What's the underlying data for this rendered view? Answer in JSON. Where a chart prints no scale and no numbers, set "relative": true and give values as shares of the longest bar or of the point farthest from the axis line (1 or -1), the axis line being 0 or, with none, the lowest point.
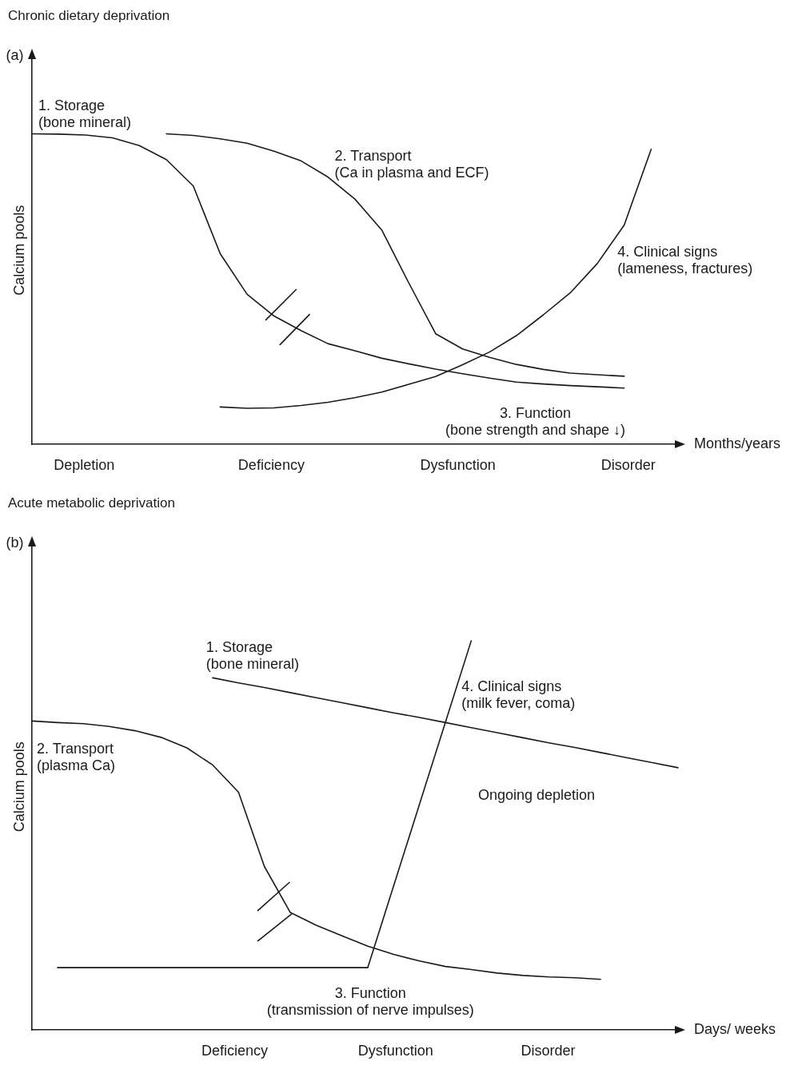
{
  "chart_data": [
    {
      "type": "line",
      "title": "Chronic dietary deprivation",
      "ylabel": "Calcium pools",
      "xlabel": "Months/years",
      "relative": true,
      "legend": false,
      "grid": false,
      "marker": "none",
      "line_style": "solid",
      "categories": [
        null,
        null,
        null,
        null,
        null,
        null,
        null,
        null,
        null,
        null,
        null,
        null,
        null,
        null,
        null,
        null,
        null,
        null,
        null,
        null,
        null,
        null,
        null,
        null,
        null
      ],
      "annotations": [
        "(a)",
        "3. Function (bone strength and shape ↓)",
        "Depletion",
        "Deficiency",
        "Dysfunction",
        "Disorder"
      ],
      "series": [
        {
          "name": "1. Storage (bone mineral)",
          "color": "#1a1a1a",
          "values": [
            1.0,
            0.999,
            0.996,
            0.987,
            0.962,
            0.917,
            0.832,
            0.614,
            0.483,
            0.413,
            0.366,
            0.324,
            0.301,
            0.277,
            0.259,
            0.242,
            0.227,
            0.213,
            0.2,
            0.194,
            0.189,
            0.185,
            0.181,
            null,
            null
          ]
        },
        {
          "name": "2. Transport (Ca in plasma and ECF)",
          "color": "#1a1a1a",
          "values": [
            null,
            null,
            null,
            null,
            null,
            1.0,
            0.995,
            0.984,
            0.97,
            0.944,
            0.913,
            0.861,
            0.79,
            0.69,
            0.52,
            0.356,
            0.307,
            0.28,
            0.257,
            0.241,
            0.229,
            0.224,
            0.219,
            null,
            null
          ]
        },
        {
          "name": "4. Clinical signs (lameness, fractures)",
          "color": "#1a1a1a",
          "values": [
            null,
            null,
            null,
            null,
            null,
            null,
            null,
            0.12,
            0.116,
            0.117,
            0.125,
            0.135,
            0.15,
            0.168,
            0.193,
            0.218,
            0.256,
            0.297,
            0.35,
            0.417,
            0.488,
            0.582,
            0.706,
            0.95,
            null
          ]
        }
      ]
    },
    {
      "type": "line",
      "title": "Acute metabolic deprivation",
      "ylabel": "Calcium pools",
      "xlabel": "Days/ weeks",
      "relative": true,
      "legend": false,
      "grid": false,
      "marker": "none",
      "line_style": "solid",
      "categories": [
        null,
        null,
        null,
        null,
        null,
        null,
        null,
        null,
        null,
        null,
        null,
        null,
        null,
        null,
        null,
        null,
        null,
        null,
        null,
        null,
        null,
        null,
        null,
        null,
        null,
        null
      ],
      "annotations": [
        "(b)",
        "Ongoing depletion",
        "Deficiency",
        "Dysfunction",
        "Disorder"
      ],
      "series": [
        {
          "name": "1. Storage (bone mineral)",
          "color": "#1a1a1a",
          "values": [
            null,
            null,
            null,
            null,
            null,
            null,
            null,
            0.905,
            0.892,
            0.88,
            0.867,
            0.854,
            0.841,
            0.828,
            0.815,
            0.803,
            0.79,
            0.777,
            0.764,
            0.751,
            0.738,
            0.726,
            0.713,
            0.7,
            0.687,
            0.674
          ]
        },
        {
          "name": "2. Transport (plasma Ca)",
          "color": "#1a1a1a",
          "values": [
            0.794,
            0.79,
            0.787,
            0.78,
            0.769,
            0.752,
            0.725,
            0.681,
            0.611,
            0.42,
            0.302,
            0.269,
            0.242,
            0.215,
            0.194,
            0.177,
            0.163,
            0.155,
            0.146,
            0.14,
            0.136,
            0.134,
            0.13,
            null,
            null,
            null
          ]
        },
        {
          "name": "3. Function (transmission of nerve impulses)",
          "color": "#1a1a1a",
          "values": [
            null,
            0.16,
            0.16,
            0.16,
            0.16,
            0.16,
            0.16,
            0.16,
            0.16,
            0.16,
            0.16,
            0.16,
            0.16,
            0.16,
            null,
            null,
            null,
            null,
            null,
            null,
            null,
            null,
            null,
            null,
            null,
            null
          ]
        },
        {
          "name": "4. Clinical signs (milk fever, coma)",
          "color": "#1a1a1a",
          "values": [
            null,
            null,
            null,
            null,
            null,
            null,
            null,
            null,
            null,
            null,
            null,
            null,
            null,
            0.16,
            0.37,
            0.58,
            0.79,
            1.0,
            null,
            null,
            null,
            null,
            null,
            null,
            null,
            null
          ]
        }
      ]
    }
  ]
}
